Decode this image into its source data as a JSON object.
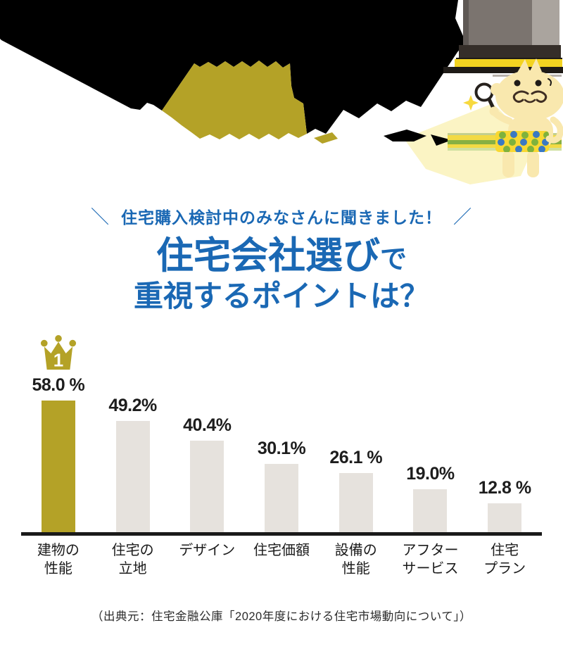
{
  "theme": {
    "blue": "#1a68b4",
    "gold": "#b4a227",
    "bar_gray": "#e6e2dd",
    "ink": "#1d1d1d",
    "beam_yellow": "#fbf4c4"
  },
  "headline": {
    "slash_left": "＼",
    "kicker": "住宅購入検討中のみなさんに聞きました！",
    "slash_right": "／",
    "title_line1_main": "住宅会社選び",
    "title_line1_suffix": "で",
    "title_line2": "重視するポイントは？"
  },
  "chart_data": {
    "type": "bar",
    "title": "住宅会社選びで重視するポイントは？",
    "categories": [
      "建物の性能",
      "住宅の立地",
      "デザイン",
      "住宅価額",
      "設備の性能",
      "アフターサービス",
      "住宅プラン"
    ],
    "category_lines": [
      [
        "建物の",
        "性能"
      ],
      [
        "住宅の",
        "立地"
      ],
      [
        "デザイン"
      ],
      [
        "住宅価額"
      ],
      [
        "設備の",
        "性能"
      ],
      [
        "アフター",
        "サービス"
      ],
      [
        "住宅",
        "プラン"
      ]
    ],
    "values": [
      58.0,
      49.2,
      40.4,
      30.1,
      26.1,
      19.0,
      12.8
    ],
    "value_labels": [
      "58.0 %",
      "49.2%",
      "40.4%",
      "30.1%",
      "26.1 %",
      "19.0%",
      "12.8 %"
    ],
    "unit": "%",
    "highlight_index": 0,
    "rank_badge": "1",
    "ylim": [
      0,
      60
    ],
    "grid": false,
    "legend": false,
    "bar_colors": {
      "highlight": "#b4a227",
      "default": "#e6e2dd"
    }
  },
  "source": {
    "text": "（出典元：住宅金融公庫「2020年度における住宅市場動向について」）"
  }
}
